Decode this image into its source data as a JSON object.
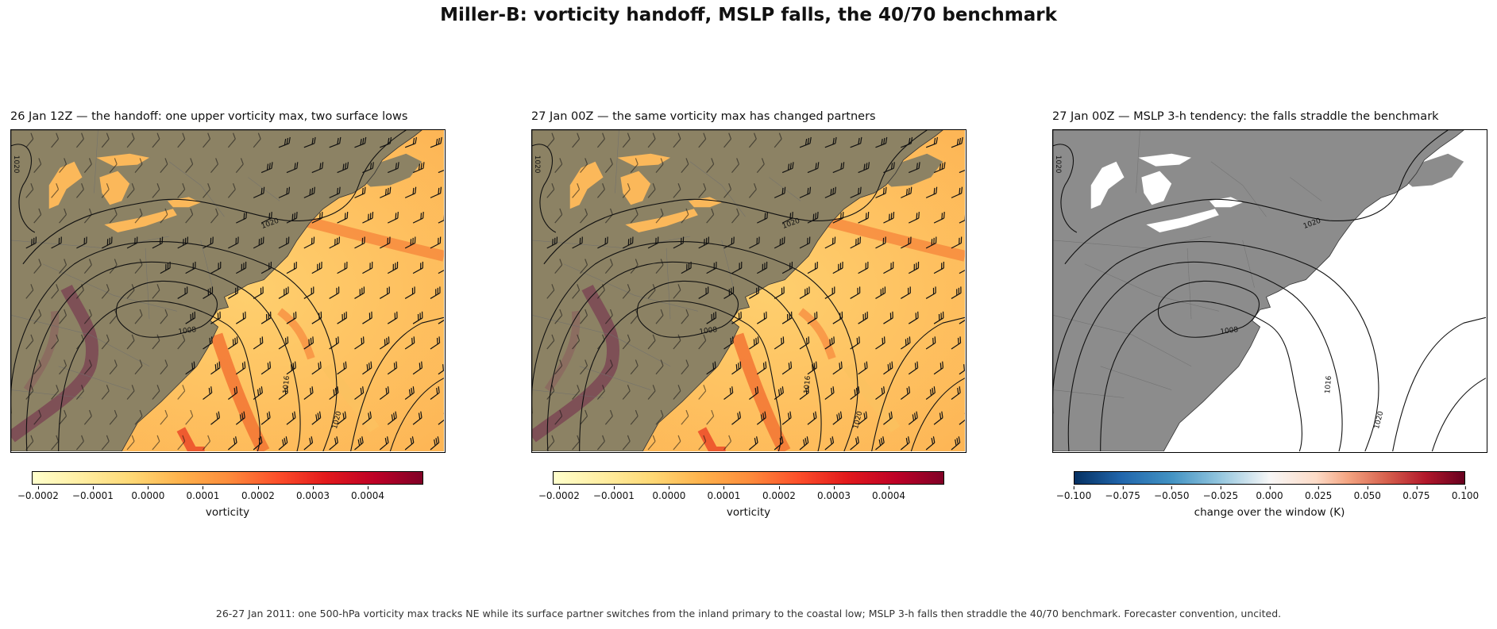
{
  "figure": {
    "suptitle": "Miller-B: vorticity handoff, MSLP falls, the 40/70 benchmark",
    "footnote": "26-27 Jan 2011: one 500-hPa vorticity max tracks NE while its surface partner switches from the inland primary to the coastal low; MSLP 3-h falls then straddle the 40/70 benchmark. Forecaster convention, uncited."
  },
  "panels": [
    {
      "title": "26 Jan 12Z — the handoff: one upper vorticity max, two surface lows",
      "colorbar_label": "vorticity",
      "colorbar_ticks": [
        "−0.0002",
        "−0.0001",
        "0.0000",
        "0.0001",
        "0.0002",
        "0.0003",
        "0.0004"
      ],
      "colormap": "YlOrRd",
      "contour_labels": [
        "1020",
        "1020",
        "1008",
        "1016",
        "1020"
      ]
    },
    {
      "title": "27 Jan 00Z — the same vorticity max has changed partners",
      "colorbar_label": "vorticity",
      "colorbar_ticks": [
        "−0.0002",
        "−0.0001",
        "0.0000",
        "0.0001",
        "0.0002",
        "0.0003",
        "0.0004"
      ],
      "colormap": "YlOrRd",
      "contour_labels": [
        "1020",
        "1020",
        "1008",
        "1016",
        "1020"
      ]
    },
    {
      "title": "27 Jan 00Z — MSLP 3-h tendency: the falls straddle the benchmark",
      "colorbar_label": "change over the window (K)",
      "colorbar_ticks": [
        "−0.100",
        "−0.075",
        "−0.050",
        "−0.025",
        "0.000",
        "0.025",
        "0.050",
        "0.075",
        "0.100"
      ],
      "colormap": "RdBu_r",
      "contour_labels": [
        "1020",
        "1020",
        "1008",
        "1016",
        "1020"
      ]
    }
  ],
  "colors": {
    "land_shaded": "#8c8264",
    "land_plain": "#8c8c8c",
    "ocean_plain": "#ffffff",
    "contour": "#111111"
  }
}
